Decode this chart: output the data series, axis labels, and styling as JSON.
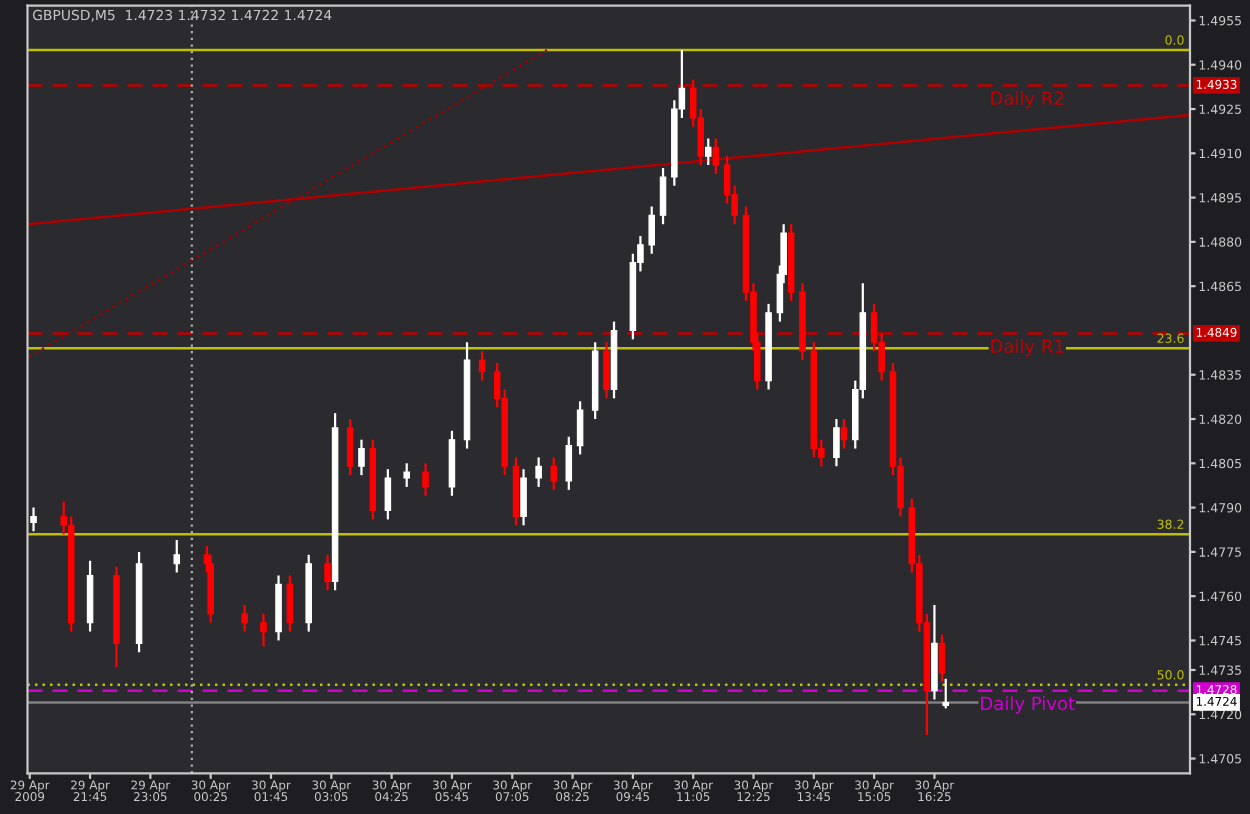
{
  "chart_data": {
    "type": "candlestick",
    "title": "GBPUSD,M5  1.4723 1.4732 1.4722 1.4724",
    "x": [
      "2009-04-29T20:30",
      "2009-04-29T21:10",
      "2009-04-29T21:20",
      "2009-04-29T21:45",
      "2009-04-29T22:20",
      "2009-04-29T22:50",
      "2009-04-29T23:40",
      "2009-04-30T00:20",
      "2009-04-30T00:25",
      "2009-04-30T01:10",
      "2009-04-30T01:35",
      "2009-04-30T01:55",
      "2009-04-30T02:10",
      "2009-04-30T02:35",
      "2009-04-30T03:00",
      "2009-04-30T03:10",
      "2009-04-30T03:30",
      "2009-04-30T03:45",
      "2009-04-30T04:00",
      "2009-04-30T04:20",
      "2009-04-30T04:45",
      "2009-04-30T05:10",
      "2009-04-30T05:45",
      "2009-04-30T06:05",
      "2009-04-30T06:25",
      "2009-04-30T06:45",
      "2009-04-30T06:55",
      "2009-04-30T07:10",
      "2009-04-30T07:20",
      "2009-04-30T07:40",
      "2009-04-30T08:00",
      "2009-04-30T08:20",
      "2009-04-30T08:35",
      "2009-04-30T08:55",
      "2009-04-30T09:10",
      "2009-04-30T09:20",
      "2009-04-30T09:45",
      "2009-04-30T09:55",
      "2009-04-30T10:10",
      "2009-04-30T10:25",
      "2009-04-30T10:40",
      "2009-04-30T10:50",
      "2009-04-30T11:05",
      "2009-04-30T11:15",
      "2009-04-30T11:25",
      "2009-04-30T11:35",
      "2009-04-30T11:50",
      "2009-04-30T12:00",
      "2009-04-30T12:15",
      "2009-04-30T12:25",
      "2009-04-30T12:30",
      "2009-04-30T12:45",
      "2009-04-30T13:00",
      "2009-04-30T13:05",
      "2009-04-30T13:15",
      "2009-04-30T13:30",
      "2009-04-30T13:45",
      "2009-04-30T13:55",
      "2009-04-30T14:15",
      "2009-04-30T14:25",
      "2009-04-30T14:40",
      "2009-04-30T14:50",
      "2009-04-30T15:05",
      "2009-04-30T15:15",
      "2009-04-30T15:30",
      "2009-04-30T15:40",
      "2009-04-30T15:55",
      "2009-04-30T16:05",
      "2009-04-30T16:15",
      "2009-04-30T16:25",
      "2009-04-30T16:35",
      "2009-04-30T16:40"
    ],
    "ohlc": [
      [
        1.4785,
        1.479,
        1.4782,
        1.4787
      ],
      [
        1.4787,
        1.4792,
        1.4781,
        1.4784
      ],
      [
        1.4784,
        1.4787,
        1.4748,
        1.4751
      ],
      [
        1.4751,
        1.4772,
        1.4748,
        1.4767
      ],
      [
        1.4767,
        1.477,
        1.4736,
        1.4744
      ],
      [
        1.4744,
        1.4775,
        1.4741,
        1.4771
      ],
      [
        1.4771,
        1.4779,
        1.4768,
        1.4774
      ],
      [
        1.4774,
        1.4777,
        1.4768,
        1.4771
      ],
      [
        1.4771,
        1.4774,
        1.4751,
        1.4754
      ],
      [
        1.4754,
        1.4757,
        1.4748,
        1.4751
      ],
      [
        1.4751,
        1.4754,
        1.4743,
        1.4748
      ],
      [
        1.4748,
        1.4767,
        1.4745,
        1.4764
      ],
      [
        1.4764,
        1.4767,
        1.4748,
        1.4751
      ],
      [
        1.4751,
        1.4774,
        1.4748,
        1.4771
      ],
      [
        1.4771,
        1.4774,
        1.4762,
        1.4765
      ],
      [
        1.4765,
        1.4822,
        1.4762,
        1.4817
      ],
      [
        1.4817,
        1.482,
        1.4801,
        1.4804
      ],
      [
        1.4804,
        1.4813,
        1.4801,
        1.481
      ],
      [
        1.481,
        1.4813,
        1.4786,
        1.4789
      ],
      [
        1.4789,
        1.4803,
        1.4786,
        1.48
      ],
      [
        1.48,
        1.4805,
        1.4797,
        1.4802
      ],
      [
        1.4802,
        1.4805,
        1.4794,
        1.4797
      ],
      [
        1.4797,
        1.4816,
        1.4794,
        1.4813
      ],
      [
        1.4813,
        1.4846,
        1.481,
        1.484
      ],
      [
        1.484,
        1.4843,
        1.4833,
        1.4836
      ],
      [
        1.4836,
        1.4839,
        1.4824,
        1.4827
      ],
      [
        1.4827,
        1.483,
        1.4801,
        1.4804
      ],
      [
        1.4804,
        1.4807,
        1.4784,
        1.4787
      ],
      [
        1.4787,
        1.4803,
        1.4784,
        1.48
      ],
      [
        1.48,
        1.4807,
        1.4797,
        1.4804
      ],
      [
        1.4804,
        1.4807,
        1.4796,
        1.4799
      ],
      [
        1.4799,
        1.4814,
        1.4796,
        1.4811
      ],
      [
        1.4811,
        1.4826,
        1.4808,
        1.4823
      ],
      [
        1.4823,
        1.4846,
        1.482,
        1.4843
      ],
      [
        1.4843,
        1.4846,
        1.4827,
        1.483
      ],
      [
        1.483,
        1.4853,
        1.4827,
        1.485
      ],
      [
        1.485,
        1.4876,
        1.4847,
        1.4873
      ],
      [
        1.4873,
        1.4882,
        1.487,
        1.4879
      ],
      [
        1.4879,
        1.4892,
        1.4876,
        1.4889
      ],
      [
        1.4889,
        1.4905,
        1.4886,
        1.4902
      ],
      [
        1.4902,
        1.4928,
        1.4899,
        1.4925
      ],
      [
        1.4925,
        1.4945,
        1.4922,
        1.4932
      ],
      [
        1.4932,
        1.4935,
        1.4919,
        1.4922
      ],
      [
        1.4922,
        1.4925,
        1.4906,
        1.4909
      ],
      [
        1.4909,
        1.4915,
        1.4906,
        1.4912
      ],
      [
        1.4912,
        1.4915,
        1.4903,
        1.4906
      ],
      [
        1.4906,
        1.4909,
        1.4893,
        1.4896
      ],
      [
        1.4896,
        1.4899,
        1.4886,
        1.4889
      ],
      [
        1.4889,
        1.4892,
        1.486,
        1.4863
      ],
      [
        1.4863,
        1.4866,
        1.4843,
        1.4846
      ],
      [
        1.4846,
        1.4849,
        1.483,
        1.4833
      ],
      [
        1.4833,
        1.4859,
        1.483,
        1.4856
      ],
      [
        1.4856,
        1.4872,
        1.4853,
        1.4869
      ],
      [
        1.4869,
        1.4886,
        1.4866,
        1.4883
      ],
      [
        1.4883,
        1.4886,
        1.486,
        1.4863
      ],
      [
        1.4863,
        1.4866,
        1.484,
        1.4843
      ],
      [
        1.4843,
        1.4846,
        1.4807,
        1.481
      ],
      [
        1.481,
        1.4813,
        1.4804,
        1.4807
      ],
      [
        1.4807,
        1.482,
        1.4804,
        1.4817
      ],
      [
        1.4817,
        1.482,
        1.481,
        1.4813
      ],
      [
        1.4813,
        1.4833,
        1.481,
        1.483
      ],
      [
        1.483,
        1.4866,
        1.4827,
        1.4856
      ],
      [
        1.4856,
        1.4859,
        1.4843,
        1.4846
      ],
      [
        1.4846,
        1.4849,
        1.4833,
        1.4836
      ],
      [
        1.4836,
        1.4839,
        1.4801,
        1.4804
      ],
      [
        1.4804,
        1.4807,
        1.4787,
        1.479
      ],
      [
        1.479,
        1.4793,
        1.4768,
        1.4771
      ],
      [
        1.4771,
        1.4774,
        1.4748,
        1.4751
      ],
      [
        1.4751,
        1.4754,
        1.4713,
        1.4728
      ],
      [
        1.4728,
        1.4757,
        1.4725,
        1.4744
      ],
      [
        1.4744,
        1.4747,
        1.4731,
        1.4734
      ],
      [
        1.4723,
        1.4732,
        1.4722,
        1.4724
      ]
    ],
    "colors": [
      "#ffffff",
      "#ff0000",
      "#ff0000",
      "#ffffff",
      "#ff0000",
      "#ffffff",
      "#ffffff",
      "#ff0000",
      "#ff0000",
      "#ff0000",
      "#ff0000",
      "#ffffff",
      "#ff0000",
      "#ffffff",
      "#ff0000",
      "#ffffff",
      "#ff0000",
      "#ffffff",
      "#ff0000",
      "#ffffff",
      "#ffffff",
      "#ff0000",
      "#ffffff",
      "#ffffff",
      "#ff0000",
      "#ff0000",
      "#ff0000",
      "#ff0000",
      "#ffffff",
      "#ffffff",
      "#ff0000",
      "#ffffff",
      "#ffffff",
      "#ffffff",
      "#ff0000",
      "#ffffff",
      "#ffffff",
      "#ffffff",
      "#ffffff",
      "#ffffff",
      "#ffffff",
      "#ffffff",
      "#ff0000",
      "#ff0000",
      "#ffffff",
      "#ff0000",
      "#ff0000",
      "#ff0000",
      "#ff0000",
      "#ff0000",
      "#ff0000",
      "#ffffff",
      "#ffffff",
      "#ffffff",
      "#ff0000",
      "#ff0000",
      "#ff0000",
      "#ff0000",
      "#ffffff",
      "#ff0000",
      "#ffffff",
      "#ffffff",
      "#ff0000",
      "#ff0000",
      "#ff0000",
      "#ff0000",
      "#ff0000",
      "#ff0000",
      "#ff0000",
      "#ffffff",
      "#ff0000",
      "#ffffff"
    ],
    "series": [
      {
        "type": "line",
        "x": [
          "2009-04-29T20:22",
          "2009-04-30T22:04"
        ],
        "values": [
          1.4886,
          1.4923
        ],
        "color": "#b00000",
        "line_style": "solid"
      },
      {
        "type": "line",
        "x": [
          "2009-04-29T20:24",
          "2009-04-30T07:51"
        ],
        "values": [
          1.4841,
          1.4945
        ],
        "color": "#a00000",
        "line_style": "dotted"
      }
    ],
    "ref_lines": [
      {
        "axis": "y",
        "value": 1.4945,
        "color": "#c0c000",
        "line_style": "solid"
      },
      {
        "axis": "y",
        "value": 1.4933,
        "label": "Daily R2",
        "color": "#c00000",
        "line_style": "dashed"
      },
      {
        "axis": "y",
        "value": 1.4849,
        "label": "Daily R1",
        "color": "#c00000",
        "line_style": "dashed"
      },
      {
        "axis": "y",
        "value": 1.4844,
        "color": "#c0c000",
        "line_style": "solid"
      },
      {
        "axis": "y",
        "value": 1.4781,
        "color": "#c0c000",
        "line_style": "solid"
      },
      {
        "axis": "y",
        "value": 1.473,
        "color": "#c0c000",
        "line_style": "dotted"
      },
      {
        "axis": "y",
        "value": 1.4728,
        "label": "Daily Pivot",
        "color": "#d000d0",
        "line_style": "dashed"
      },
      {
        "axis": "y",
        "value": 1.4724,
        "color": "#808080",
        "line_style": "solid"
      },
      {
        "axis": "x",
        "value": "2009-04-30T00:00",
        "color": "#b0b0b0",
        "line_style": "dotted"
      }
    ],
    "annotations": [
      {
        "text": "0.0",
        "x": "2009-04-30T22:04",
        "y": 1.4945
      },
      {
        "text": "23.6",
        "x": "2009-04-30T22:04",
        "y": 1.4844
      },
      {
        "text": "38.2",
        "x": "2009-04-30T22:04",
        "y": 1.4781
      },
      {
        "text": "50.0",
        "x": "2009-04-30T22:04",
        "y": 1.473
      },
      {
        "text": "1.4933",
        "x": "2009-04-30T22:04",
        "y": 1.4933
      },
      {
        "text": "1.4849",
        "x": "2009-04-30T22:04",
        "y": 1.4849
      },
      {
        "text": "1.4728",
        "x": "2009-04-30T22:04",
        "y": 1.4728
      },
      {
        "text": "1.4724",
        "x": "2009-04-30T22:04",
        "y": 1.4724
      }
    ],
    "xlim": [
      "2009-04-29T20:22",
      "2009-04-30T22:04"
    ],
    "ylim": [
      1.47,
      1.496
    ],
    "xticks": [
      {
        "value": "2009-04-29T20:25",
        "label": "29 Apr 2009"
      },
      {
        "value": "2009-04-29T21:45",
        "label": "29 Apr 21:45"
      },
      {
        "value": "2009-04-29T23:05",
        "label": "29 Apr 23:05"
      },
      {
        "value": "2009-04-30T00:25",
        "label": "30 Apr 00:25"
      },
      {
        "value": "2009-04-30T01:45",
        "label": "30 Apr 01:45"
      },
      {
        "value": "2009-04-30T03:05",
        "label": "30 Apr 03:05"
      },
      {
        "value": "2009-04-30T04:25",
        "label": "30 Apr 04:25"
      },
      {
        "value": "2009-04-30T05:45",
        "label": "30 Apr 05:45"
      },
      {
        "value": "2009-04-30T07:05",
        "label": "30 Apr 07:05"
      },
      {
        "value": "2009-04-30T08:25",
        "label": "30 Apr 08:25"
      },
      {
        "value": "2009-04-30T09:45",
        "label": "30 Apr 09:45"
      },
      {
        "value": "2009-04-30T11:05",
        "label": "30 Apr 11:05"
      },
      {
        "value": "2009-04-30T12:25",
        "label": "30 Apr 12:25"
      },
      {
        "value": "2009-04-30T13:45",
        "label": "30 Apr 13:45"
      },
      {
        "value": "2009-04-30T15:05",
        "label": "30 Apr 15:05"
      },
      {
        "value": "2009-04-30T16:25",
        "label": "30 Apr 16:25"
      }
    ],
    "yticks": [
      1.4955,
      {
        "value": 1.494,
        "label": "1.4940"
      },
      1.4925,
      {
        "value": 1.491,
        "label": "1.4910"
      },
      1.4895,
      {
        "value": 1.488,
        "label": "1.4880"
      },
      1.4865,
      1.4835,
      {
        "value": 1.482,
        "label": "1.4820"
      },
      1.4805,
      {
        "value": 1.479,
        "label": "1.4790"
      },
      1.4775,
      {
        "value": 1.476,
        "label": "1.4760"
      },
      1.4745,
      1.4735,
      {
        "value": 1.472,
        "label": "1.4720"
      },
      1.4705
    ],
    "grid": false,
    "legend": false
  }
}
